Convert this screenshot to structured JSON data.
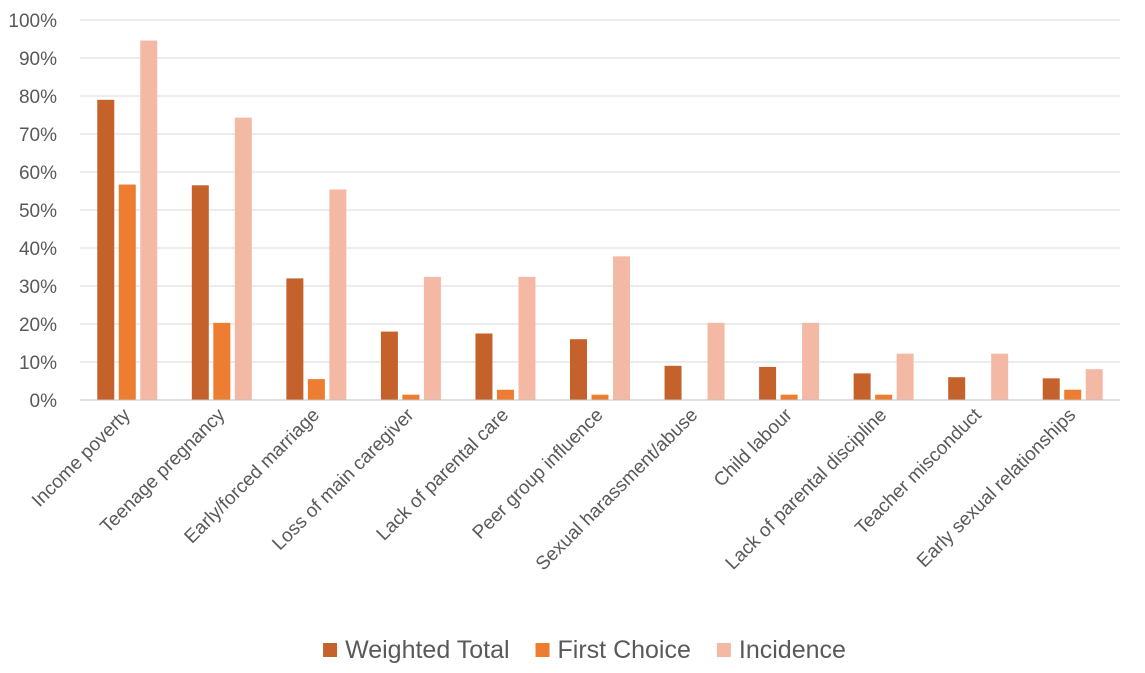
{
  "chart_data": {
    "type": "bar",
    "title": "",
    "xlabel": "",
    "ylabel": "",
    "ylim": [
      0,
      100
    ],
    "y_tick_step": 10,
    "y_tick_labels": [
      "0%",
      "10%",
      "20%",
      "30%",
      "40%",
      "50%",
      "60%",
      "70%",
      "80%",
      "90%",
      "100%"
    ],
    "grid": true,
    "legend_position": "bottom",
    "categories": [
      "Income poverty",
      "Teenage pregnancy",
      "Early/forced marriage",
      "Loss of main caregiver",
      "Lack of parental care",
      "Peer group influence",
      "Sexual harassment/abuse",
      "Child labour",
      "Lack of parental discipline",
      "Teacher misconduct",
      "Early sexual relationships"
    ],
    "series": [
      {
        "name": "Weighted Total",
        "color": "#c5622b",
        "values": [
          79,
          56.5,
          32,
          18,
          17.5,
          16,
          9,
          8.7,
          7,
          6,
          5.7
        ]
      },
      {
        "name": "First Choice",
        "color": "#ed7d31",
        "values": [
          56.7,
          20.3,
          5.5,
          1.4,
          2.7,
          1.4,
          0,
          1.4,
          1.4,
          0,
          2.7
        ]
      },
      {
        "name": "Incidence",
        "color": "#f4b9a5",
        "values": [
          94.6,
          74.3,
          55.4,
          32.4,
          32.4,
          37.8,
          20.3,
          20.3,
          12.2,
          12.2,
          8.1
        ]
      }
    ]
  }
}
